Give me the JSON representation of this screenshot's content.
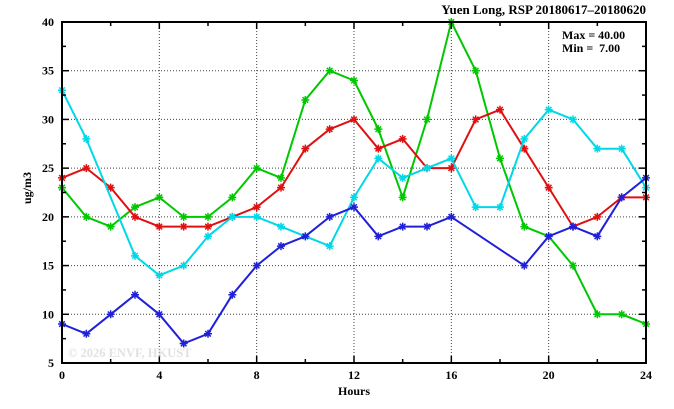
{
  "title": "Yuen Long, RSP 20180617–20180620",
  "legend": {
    "max_label": "Max = 40.00",
    "min_label": "Min =  7.00"
  },
  "watermark": "© 2026 ENVF, HKUST",
  "axes": {
    "x_label": "Hours",
    "y_label": "ug/m3",
    "x_tick_labels": [
      "0",
      "4",
      "8",
      "12",
      "16",
      "20",
      "24"
    ],
    "y_tick_labels": [
      "5",
      "10",
      "15",
      "20",
      "25",
      "30",
      "35",
      "40"
    ]
  },
  "chart_data": {
    "type": "line",
    "title": "Yuen Long, RSP 20180617–20180620",
    "xlabel": "Hours",
    "ylabel": "ug/m3",
    "xlim": [
      0,
      24
    ],
    "ylim": [
      5,
      40
    ],
    "x_major_ticks": [
      0,
      4,
      8,
      12,
      16,
      20,
      24
    ],
    "x_minor_ticks": [
      2,
      6,
      10,
      14,
      18,
      22
    ],
    "y_major_ticks": [
      5,
      10,
      15,
      20,
      25,
      30,
      35,
      40
    ],
    "y_minor_ticks": [
      7.5,
      12.5,
      17.5,
      22.5,
      27.5,
      32.5,
      37.5
    ],
    "x_gridlines": [
      4,
      8,
      12,
      16,
      20
    ],
    "y_gridlines": [
      10,
      15,
      20,
      25,
      30,
      35
    ],
    "grid": true,
    "legend_position": "top-right",
    "annotations": {
      "max": 40.0,
      "min": 7.0
    },
    "x": [
      0,
      1,
      2,
      3,
      4,
      5,
      6,
      7,
      8,
      9,
      10,
      11,
      12,
      13,
      14,
      15,
      16,
      17,
      18,
      19,
      20,
      21,
      22,
      23,
      24
    ],
    "series": [
      {
        "name": "green",
        "color": "#00c800",
        "values": [
          23,
          20,
          19,
          21,
          22,
          20,
          20,
          22,
          25,
          24,
          32,
          35,
          34,
          29,
          22,
          30,
          40,
          35,
          26,
          19,
          18,
          15,
          10,
          10,
          9
        ]
      },
      {
        "name": "red",
        "color": "#e01010",
        "values": [
          24,
          25,
          23,
          20,
          19,
          19,
          19,
          20,
          21,
          23,
          27,
          29,
          30,
          27,
          28,
          25,
          25,
          30,
          31,
          27,
          23,
          19,
          20,
          22,
          22
        ]
      },
      {
        "name": "cyan",
        "color": "#00d8e8",
        "values": [
          33,
          28,
          null,
          16,
          14,
          15,
          18,
          20,
          20,
          19,
          18,
          17,
          22,
          26,
          24,
          25,
          26,
          21,
          21,
          28,
          31,
          30,
          27,
          27,
          23
        ]
      },
      {
        "name": "blue",
        "color": "#2020d8",
        "values": [
          9,
          8,
          10,
          12,
          10,
          7,
          8,
          12,
          15,
          17,
          18,
          20,
          21,
          18,
          19,
          19,
          20,
          null,
          null,
          15,
          18,
          19,
          18,
          22,
          24
        ]
      }
    ]
  }
}
